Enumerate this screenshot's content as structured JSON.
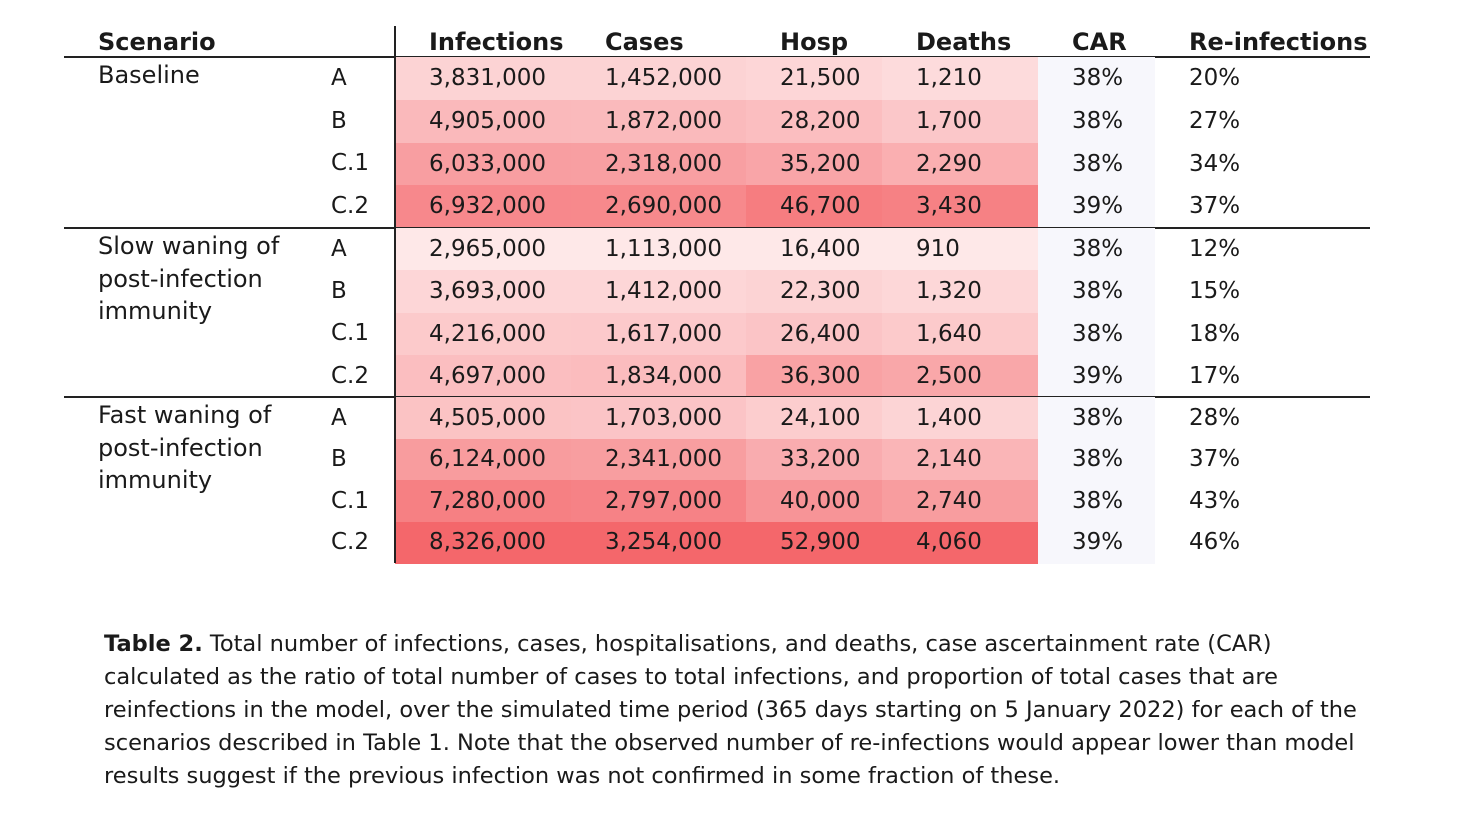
{
  "table": {
    "headers": [
      "Scenario",
      "Infections",
      "Cases",
      "Hosp",
      "Deaths",
      "CAR",
      "Re-infections"
    ],
    "groups": [
      {
        "name_lines": [
          "Baseline"
        ],
        "rows": [
          {
            "variant": "A",
            "cells": [
              "3,831,000",
              "1,452,000",
              "21,500",
              "1,210",
              "38%",
              "20%"
            ]
          },
          {
            "variant": "B",
            "cells": [
              "4,905,000",
              "1,872,000",
              "28,200",
              "1,700",
              "38%",
              "27%"
            ]
          },
          {
            "variant": "C.1",
            "cells": [
              "6,033,000",
              "2,318,000",
              "35,200",
              "2,290",
              "38%",
              "34%"
            ]
          },
          {
            "variant": "C.2",
            "cells": [
              "6,932,000",
              "2,690,000",
              "46,700",
              "3,430",
              "39%",
              "37%"
            ]
          }
        ]
      },
      {
        "name_lines": [
          "Slow waning of",
          "post-infection",
          "immunity"
        ],
        "rows": [
          {
            "variant": "A",
            "cells": [
              "2,965,000",
              "1,113,000",
              "16,400",
              "910",
              "38%",
              "12%"
            ]
          },
          {
            "variant": "B",
            "cells": [
              "3,693,000",
              "1,412,000",
              "22,300",
              "1,320",
              "38%",
              "15%"
            ]
          },
          {
            "variant": "C.1",
            "cells": [
              "4,216,000",
              "1,617,000",
              "26,400",
              "1,640",
              "38%",
              "18%"
            ]
          },
          {
            "variant": "C.2",
            "cells": [
              "4,697,000",
              "1,834,000",
              "36,300",
              "2,500",
              "39%",
              "17%"
            ]
          }
        ]
      },
      {
        "name_lines": [
          "Fast waning of",
          "post-infection",
          "immunity"
        ],
        "rows": [
          {
            "variant": "A",
            "cells": [
              "4,505,000",
              "1,703,000",
              "24,100",
              "1,400",
              "38%",
              "28%"
            ]
          },
          {
            "variant": "B",
            "cells": [
              "6,124,000",
              "2,341,000",
              "33,200",
              "2,140",
              "38%",
              "37%"
            ]
          },
          {
            "variant": "C.1",
            "cells": [
              "7,280,000",
              "2,797,000",
              "40,000",
              "2,740",
              "38%",
              "43%"
            ]
          },
          {
            "variant": "C.2",
            "cells": [
              "8,326,000",
              "3,254,000",
              "52,900",
              "4,060",
              "39%",
              "46%"
            ]
          }
        ]
      }
    ]
  },
  "caption": {
    "label": "Table 2.",
    "text": "Total number of infections, cases, hospitalisations, and deaths, case ascertainment rate (CAR) calculated as the ratio of total number of cases to total infections, and proportion of total cases that are reinfections in the model, over the simulated time period (365 days starting on 5 January 2022) for each of the scenarios described in Table 1. Note that the observed number of re-infections would appear lower than model results suggest if the previous infection was not confirmed in some fraction of these."
  },
  "colors": {
    "heat_low": "#fff6f6",
    "heat_high": "#f4676b",
    "car_shade": "#f7f7fc",
    "rule": "#222222"
  }
}
